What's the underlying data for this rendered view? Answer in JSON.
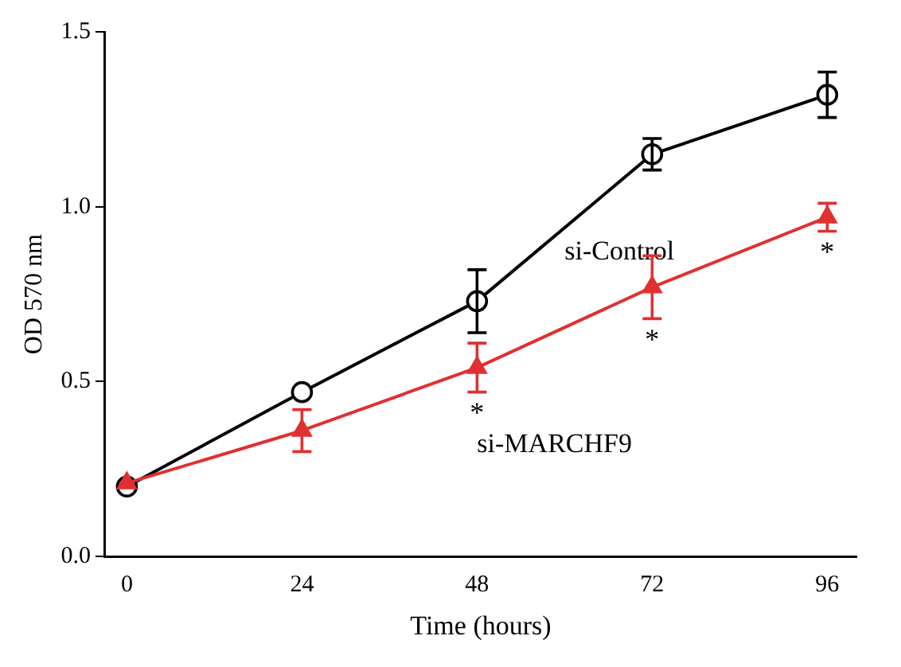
{
  "chart_data": {
    "type": "line",
    "xlabel": "Time (hours)",
    "ylabel": "OD 570 nm",
    "x": [
      0,
      24,
      48,
      72,
      96
    ],
    "xlim": [
      -3,
      100
    ],
    "xticks": [
      0,
      24,
      48,
      72,
      96
    ],
    "ylim": [
      0,
      1.5
    ],
    "yticks": [
      {
        "value": 0,
        "label": "0.0"
      },
      {
        "value": 0.5,
        "label": "0.5"
      },
      {
        "value": 1,
        "label": "1.0"
      },
      {
        "value": 1.5,
        "label": "1.5"
      }
    ],
    "grid": false,
    "legend": false,
    "line_style": "solid",
    "series": [
      {
        "name": "si-Control",
        "color": "#000000",
        "marker": "circle",
        "values": [
          0.2,
          0.47,
          0.73,
          1.15,
          1.32
        ],
        "errors": [
          null,
          null,
          0.09,
          0.045,
          0.065
        ]
      },
      {
        "name": "si-MARCHF9",
        "color": "#e03030",
        "marker": "triangle",
        "values": [
          0.21,
          0.36,
          0.54,
          0.77,
          0.97
        ],
        "errors": [
          null,
          0.06,
          0.07,
          0.09,
          0.04
        ]
      }
    ],
    "annotations": [
      {
        "text": "*",
        "x": 48,
        "y": 0.54
      },
      {
        "text": "*",
        "x": 72,
        "y": 0.77
      },
      {
        "text": "*",
        "x": 96,
        "y": 0.97
      }
    ]
  }
}
